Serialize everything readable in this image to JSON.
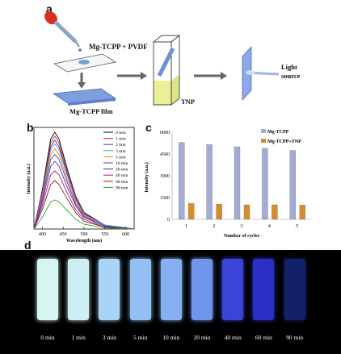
{
  "panel_a": {
    "letter": "a",
    "solution_label": "Mg-TCPP + PVDF",
    "film_label": "Mg-TCPP film",
    "reagent_label": "TNP",
    "light_label_1": "Light",
    "light_label_2": "source"
  },
  "panel_b": {
    "letter": "b",
    "ylabel": "Intensity (a.u.)",
    "xlabel": "Wavelength (nm)",
    "x_ticks": [
      "400",
      "450",
      "500",
      "550",
      "600"
    ],
    "legend": [
      "0 min",
      "1 min",
      "2 min",
      "3 min",
      "5 min",
      "10 min",
      "20 min",
      "40 min",
      "60 min",
      "90 min"
    ],
    "colors": [
      "#000000",
      "#e31a1c",
      "#1f3fbf",
      "#3aa6d6",
      "#ff7f0e",
      "#6a3d9a",
      "#3d2bd6",
      "#b3126c",
      "#8b1a1a",
      "#2ca02c"
    ]
  },
  "panel_c": {
    "letter": "c",
    "ylabel": "Intensity (a.u.)",
    "xlabel": "Number of cycles",
    "legend_1": "Mg-TCPP",
    "legend_2": "Mg-TCPP+TNP",
    "y_ticks": [
      "0",
      "1500",
      "3000",
      "4500",
      "6000"
    ],
    "categories": [
      "1",
      "2",
      "3",
      "4",
      "5"
    ]
  },
  "panel_d": {
    "letter": "d",
    "times": [
      "0 min",
      "1 min",
      "3 min",
      "5 min",
      "10 min",
      "20 min",
      "40 min",
      "60 min",
      "90 min"
    ],
    "strip_colors": [
      "#d6f4f2",
      "#cdeef3",
      "#a9d4f6",
      "#93c0f3",
      "#87b0f0",
      "#6f96ec",
      "#3a44d8",
      "#2a2fc6",
      "#13206a"
    ]
  },
  "chart_data": [
    {
      "type": "line",
      "x": [
        380,
        400,
        420,
        430,
        440,
        460,
        480,
        500,
        550,
        620
      ],
      "series": [
        {
          "name": "0 min",
          "values": [
            0,
            0.4,
            0.93,
            1.0,
            0.93,
            0.62,
            0.34,
            0.17,
            0.04,
            0.0
          ]
        },
        {
          "name": "1 min",
          "values": [
            0,
            0.38,
            0.89,
            0.96,
            0.89,
            0.6,
            0.33,
            0.16,
            0.04,
            0.0
          ]
        },
        {
          "name": "2 min",
          "values": [
            0,
            0.36,
            0.85,
            0.92,
            0.85,
            0.57,
            0.31,
            0.15,
            0.04,
            0.0
          ]
        },
        {
          "name": "3 min",
          "values": [
            0,
            0.35,
            0.82,
            0.88,
            0.82,
            0.55,
            0.3,
            0.15,
            0.04,
            0.0
          ]
        },
        {
          "name": "5 min",
          "values": [
            0,
            0.33,
            0.77,
            0.83,
            0.77,
            0.51,
            0.28,
            0.14,
            0.03,
            0.0
          ]
        },
        {
          "name": "10 min",
          "values": [
            0,
            0.31,
            0.72,
            0.77,
            0.72,
            0.48,
            0.26,
            0.13,
            0.03,
            0.0
          ]
        },
        {
          "name": "20 min",
          "values": [
            0,
            0.28,
            0.65,
            0.7,
            0.65,
            0.43,
            0.24,
            0.12,
            0.03,
            0.0
          ]
        },
        {
          "name": "40 min",
          "values": [
            0,
            0.24,
            0.56,
            0.6,
            0.56,
            0.37,
            0.2,
            0.1,
            0.02,
            0.0
          ]
        },
        {
          "name": "60 min",
          "values": [
            0,
            0.2,
            0.46,
            0.5,
            0.46,
            0.31,
            0.17,
            0.08,
            0.02,
            0.0
          ]
        },
        {
          "name": "90 min",
          "values": [
            0,
            0.12,
            0.28,
            0.3,
            0.28,
            0.19,
            0.1,
            0.05,
            0.01,
            0.0
          ]
        }
      ],
      "xlabel": "Wavelength (nm)",
      "ylabel": "Intensity (a.u.)",
      "xlim": [
        380,
        620
      ],
      "legend_position": "top-right"
    },
    {
      "type": "bar",
      "categories": [
        "1",
        "2",
        "3",
        "4",
        "5"
      ],
      "series": [
        {
          "name": "Mg-TCPP",
          "values": [
            5300,
            5150,
            5000,
            4900,
            4750
          ]
        },
        {
          "name": "Mg-TCPP+TNP",
          "values": [
            1100,
            1050,
            1000,
            1000,
            980
          ]
        }
      ],
      "xlabel": "Number of cycles",
      "ylabel": "Intensity (a.u.)",
      "ylim": [
        0,
        6000
      ],
      "legend_position": "top-right"
    }
  ]
}
